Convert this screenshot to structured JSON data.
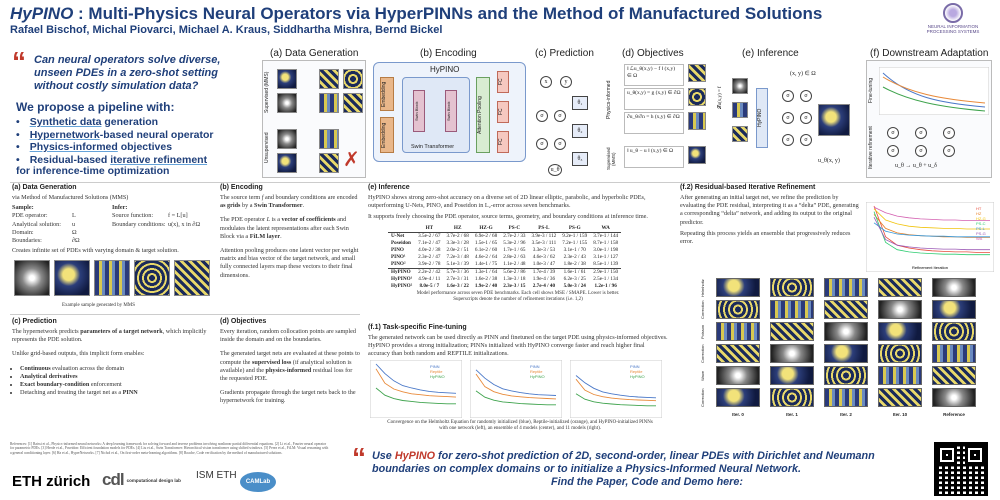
{
  "header": {
    "title_main": "HyPINO",
    "title_rest": " : Multi-Physics Neural Operators via HyperPINNs and the Method of Manufactured Solutions",
    "authors": "Rafael Bischof, Michal Piovarci, Michael A. Kraus, Siddhartha Mishra, Bernd Bickel",
    "conf_logo_text": "NEURAL INFORMATION PROCESSING SYSTEMS"
  },
  "claims": {
    "question": "Can neural operators solve diverse, unseen PDEs in a zero-shot setting without costly simulation data?",
    "propose": "We propose a pipeline with:",
    "items": [
      {
        "hl": "Synthetic data",
        "rest": " generation"
      },
      {
        "hl": "Hypernetwork",
        "rest": "-based neural operator"
      },
      {
        "hl": "Physics-informed",
        "rest": " objectives"
      },
      {
        "pre": "Residual-based ",
        "hl": "iterative refinement",
        "rest": ""
      }
    ],
    "last": "for inference-time optimization"
  },
  "panels": {
    "a": "(a) Data Generation",
    "b": "(b) Encoding",
    "c": "(c) Prediction",
    "d": "(d) Objectives",
    "e": "(e) Inference",
    "f": "(f) Downstream Adaptation"
  },
  "top_labels": {
    "supervised": "Supervised (MMS)",
    "unsupervised": "Unsupervised",
    "hypino": "HyPINO",
    "embedding": "Embedding",
    "swin_block": "Swin Block",
    "swin_transformer": "Swin Transformer",
    "attention_pooling": "Attention Pooling",
    "fc": "FC",
    "physics_informed": "Physics-informed",
    "supervised_short": "Supervised (MMS)",
    "fine_tuning": "Fine-tuning",
    "iterative_refinement": "Iterative refinement",
    "theta1": "θ₁",
    "theta2": "θ₂",
    "theta3": "θ₃",
    "u_theta": "u_θ",
    "sigma": "σ",
    "x": "x",
    "y": "y",
    "inference_domain": "(x, y) ∈ Ω",
    "inference_output": "u_θ(x, y)",
    "operator": "ℒ",
    "hypino_vert": "HyPINO",
    "lu_eq": "𝓛u(x,y) = f",
    "obj1": "‖ ℒu_θ(x,y) − f ‖ (x,y) ∈ Ω",
    "obj2": "u_θ(x,y) = g  (x,y) ∈ ∂Ω",
    "obj3": "∂u_θ/∂n = h  (x,y) ∈ ∂Ω",
    "obj4": "‖ u_θ − u ‖ (x,y) ∈ Ω",
    "ft_eq": "u_θ → u_θ + u_δ",
    "cross": "✗"
  },
  "sections": {
    "a": {
      "head": "(a) Data Generation",
      "intro": "via Method of Manufactured Solutions (MMS)",
      "sample": "Sample:",
      "infer": "Infer:",
      "rows": [
        {
          "k": "PDE operator:",
          "v": "L",
          "k2": "Source function:",
          "v2": "f = L[u]"
        },
        {
          "k": "Analytical solution:",
          "v": "u",
          "k2": "Boundary conditions:",
          "v2": "u(x), x in ∂Ω"
        },
        {
          "k": "Domain:",
          "v": "Ω",
          "k2": "",
          "v2": ""
        },
        {
          "k": "Boundaries:",
          "v": "∂Ω",
          "k2": "",
          "v2": ""
        }
      ],
      "note": "Creates infinite set of PDEs with varying domain & target solution.",
      "caption": "Example sample generated by MMS"
    },
    "b": {
      "head": "(b) Encoding",
      "p1_a": "The source term ",
      "p1_f": "f",
      "p1_b": " and boundary conditions are encoded ",
      "p1_grids": "as grids",
      "p1_c": " by a ",
      "p1_swin": "Swin Transformer",
      "p1_d": ".",
      "p2_a": "The PDE operator ",
      "p2_l": "L",
      "p2_b": " is a ",
      "p2_vec": "vector of coefficients",
      "p2_c": " and modulates the latent representations after each Swin Block via a ",
      "p2_film": "FiLM layer",
      "p2_d": ".",
      "p3": "Attention pooling produces one latent vector per weight matrix and bias vector of the target network, and small fully connected layers map these vectors to their final dimensions."
    },
    "e": {
      "head": "(e) Inference",
      "p1": "HyPINO shows strong zero-shot accuracy on a diverse set of 2D linear elliptic, parabolic, and hyperbolic PDEs, outperforming U-Nets, PINO, and Poseidon in L₂-error across seven benchmarks.",
      "p2": "It supports freely choosing the PDE operator, source terms, geometry, and boundary conditions at inference time.",
      "table_caption": "Model performance across seven PDE benchmarks. Each cell shows MSE / SMAPE. Lower is better.",
      "table_caption2": "Superscripts denote the number of refinement iterations (i.e. 1,2)"
    },
    "f2": {
      "head": "(f.2) Residual-based Iterative Refinement",
      "p1": "After generating an initial target net, we refine the prediction by evaluating the PDE residual, interpreting it as a “delta” PDE, generating a corresponding “delta” network, and adding its output to the original predictor.",
      "p2": "Repeating this process yields an ensemble that progressively reduces error.",
      "x_label": "Refinement Iteration",
      "row_labels": [
        "Helmholtz",
        "Correction",
        "Poisson",
        "Correction",
        "Wave",
        "Correction"
      ],
      "col_labels": [
        "Iter. 0",
        "Iter. 1",
        "Iter. 2",
        "Iter. 10",
        "Reference"
      ],
      "legend": [
        "HT",
        "HZ",
        "HZ-G",
        "PS-C",
        "PS-L",
        "PS-G",
        "WA"
      ]
    },
    "c": {
      "head": "(c) Prediction",
      "p1_a": "The hypernetwork predicts ",
      "p1_b": "parameters of a target network",
      "p1_c": ", which implicitly represents the PDE solution.",
      "p2": "Unlike grid-based outputs, this implicit form enables:",
      "bullets": [
        {
          "b": "Continuous",
          "r": " evaluation across the domain"
        },
        {
          "b": "Analytical derivatives",
          "r": ""
        },
        {
          "b": "Exact boundary-condition",
          "r": " enforcement"
        },
        {
          "b": "",
          "r": "Detaching and treating the target net as a "
        },
        {
          "b": "PINN",
          "r": ""
        }
      ]
    },
    "d": {
      "head": "(d) Objectives",
      "p1": "Every iteration, random collocation points are sampled inside the domain and on the boundaries.",
      "p2_a": "The generated target nets are evaluated at these points to compute the ",
      "p2_b": "supervised loss",
      "p2_c": " (if analytical solution is available) and the ",
      "p2_d": "physics-informed",
      "p2_e": " residual loss for the requested PDE.",
      "p3": "Gradients propagate through the target nets back to the hypernetwork for training."
    },
    "f1": {
      "head": "(f.1) Task-specific Fine-tuning",
      "p1": "The generated network can be used directly as PINN and finetuned on the target PDE using physics-informed objectives. HyPINO provides a strong initialization; PINNs initialized with HyPINO converge faster and reach higher final accuracy than both random and REPTILE initializations.",
      "legend": [
        "PINN",
        "Reptile",
        "HyPINO"
      ],
      "caption1": "Convergence on the Helmholtz Equation for randomly initialized (blue), Reptile-initialized (orange), and HyPINO-initialized PINNs",
      "caption2": "with one network (left), an ensemble of 4 models (center), and 11 models (right)."
    }
  },
  "table": {
    "cols": [
      "",
      "HT",
      "HZ",
      "HZ-G",
      "PS-C",
      "PS-L",
      "PS-G",
      "WA"
    ],
    "rows": [
      {
        "m": "U-Net",
        "v": [
          "3.5e-2 / 67",
          "3.7e-2 / 68",
          "6.9e-2 / 68",
          "2.7e-2 / 33",
          "3.9e-3 / 112",
          "9.2e-1 / 159",
          "3.7e-1 / 144"
        ]
      },
      {
        "m": "Poseidon",
        "v": [
          "7.1e-2 / 47",
          "3.3e-3 / 28",
          "1.5e-1 / 65",
          "5.3e-2 / 96",
          "3.5e-3 / 111",
          "7.2e-1 / 155",
          "8.7e-1 / 158"
        ]
      },
      {
        "m": "PINO",
        "v": [
          "4.0e-2 / 38",
          "2.0e-2 / 51",
          "6.1e-2 / 60",
          "1.7e-1 / 65",
          "3.3e-3 / 53",
          "3.1e-1 / 70",
          "3.0e-1 / 198"
        ]
      },
      {
        "m": "PINO¹",
        "v": [
          "2.3e-2 / 47",
          "7.2e-3 / 48",
          "4.6e-2 / 64",
          "2.8e-2 / 63",
          "4.6e-3 / 62",
          "2.3e-2 / 43",
          "3.1e-1 / 127"
        ]
      },
      {
        "m": "PINO²",
        "v": [
          "3.9e-2 / 78",
          "5.1e-3 / 39",
          "1.4e-1 / 75",
          "1.1e-2 / 48",
          "1.0e-3 / 47",
          "1.8e-2 / 38",
          "8.5e-1 / 139"
        ]
      },
      {
        "m": "HyPINO",
        "v": [
          "2.2e-2 / 42",
          "5.7e-3 / 36",
          "1.3e-1 / 64",
          "5.6e-2 / 86",
          "1.7e-4 / 39",
          "1.6e-1 / 61",
          "2.9e-1 / 150"
        ]
      },
      {
        "m": "HyPINO¹",
        "v": [
          "4.9e-4 / 11",
          "2.7e-3 / 31",
          "1.6e-2 / 38",
          "1.3e-3 / 18",
          "1.9e-4 / 36",
          "6.2e-3 / 25",
          "2.5e-1 / 134"
        ]
      },
      {
        "m": "HyPINO²",
        "v": [
          "8.0e-5 / 7",
          "1.6e-3 / 22",
          "1.9e-2 / 40",
          "2.3e-3 / 15",
          "2.7e-4 / 40",
          "5.0e-3 / 24",
          "1.2e-1 / 96"
        ]
      }
    ]
  },
  "chart_data": [
    {
      "type": "line",
      "title": "",
      "xlabel": "Refinement Iteration",
      "ylabel": "",
      "x": [
        0,
        1,
        2,
        3,
        4,
        5,
        6,
        7,
        8,
        9,
        10
      ],
      "series": [
        {
          "name": "HT",
          "values": [
            1.0,
            0.45,
            0.3,
            0.25,
            0.22,
            0.2,
            0.19,
            0.18,
            0.18,
            0.17,
            0.17
          ]
        },
        {
          "name": "HZ",
          "values": [
            0.85,
            0.6,
            0.52,
            0.49,
            0.47,
            0.46,
            0.45,
            0.45,
            0.44,
            0.44,
            0.44
          ]
        },
        {
          "name": "HZ-G",
          "values": [
            0.95,
            0.75,
            0.68,
            0.64,
            0.62,
            0.61,
            0.6,
            0.6,
            0.59,
            0.59,
            0.59
          ]
        },
        {
          "name": "PS-C",
          "values": [
            0.9,
            0.35,
            0.22,
            0.18,
            0.16,
            0.15,
            0.14,
            0.14,
            0.13,
            0.13,
            0.13
          ]
        },
        {
          "name": "PS-L",
          "values": [
            0.7,
            0.55,
            0.5,
            0.48,
            0.47,
            0.46,
            0.46,
            0.45,
            0.45,
            0.45,
            0.45
          ]
        },
        {
          "name": "PS-G",
          "values": [
            0.8,
            0.4,
            0.3,
            0.27,
            0.25,
            0.24,
            0.23,
            0.23,
            0.22,
            0.22,
            0.22
          ]
        },
        {
          "name": "WA",
          "values": [
            0.98,
            0.88,
            0.82,
            0.79,
            0.77,
            0.76,
            0.75,
            0.75,
            0.74,
            0.74,
            0.74
          ]
        }
      ],
      "colors": [
        "#e74c3c",
        "#e67e22",
        "#f1c40f",
        "#2ecc71",
        "#3498db",
        "#9b59b6",
        "#d35fb0"
      ]
    },
    {
      "type": "line",
      "title": "",
      "legend": [
        "PINN",
        "Reptile",
        "HyPINO"
      ],
      "x": [
        0,
        1,
        2,
        3,
        4,
        5,
        6,
        7,
        8,
        9
      ],
      "series": [
        {
          "name": "PINN",
          "values": [
            1.0,
            0.8,
            0.65,
            0.55,
            0.5,
            0.46,
            0.43,
            0.41,
            0.4,
            0.39
          ]
        },
        {
          "name": "Reptile",
          "values": [
            0.9,
            0.6,
            0.48,
            0.42,
            0.38,
            0.36,
            0.34,
            0.33,
            0.32,
            0.31
          ]
        },
        {
          "name": "HyPINO",
          "values": [
            0.5,
            0.35,
            0.28,
            0.24,
            0.22,
            0.2,
            0.19,
            0.18,
            0.17,
            0.17
          ]
        }
      ],
      "colors": [
        "#4a78c8",
        "#e88a3a",
        "#3fa34d"
      ]
    }
  ],
  "bottom": {
    "cta_a": "Use ",
    "cta_hyp": "HyPINO",
    "cta_b": " for zero-shot prediction of 2D, second-order, linear PDEs with Dirichlet and Neumann boundaries on complex domains or to initialize a Physics-Informed Neural Network.",
    "cta_c": "Find the Paper, Code and Demo here:",
    "eth": "ETH zürich",
    "cdl": "cdl",
    "cdl_sub": "computational design lab",
    "isma": "ISM ETH",
    "cam": "CAMLab",
    "refs": "References: [1] Raissi et al., Physics-informed neural networks: A deep learning framework for solving forward and inverse problems involving nonlinear partial differential equations. [2] Li et al., Fourier neural operator for parametric PDEs. [3] Herde et al., Poseidon: Efficient foundation models for PDEs. [4] Liu et al., Swin Transformer: Hierarchical vision transformer using shifted windows. [5] Perez et al., FiLM: Visual reasoning with a general conditioning layer. [6] Ha et al., HyperNetworks. [7] Nichol et al., On first-order meta-learning algorithms. [8] Roache, Code verification by the method of manufactured solutions."
  },
  "colors": {
    "navy": "#1f3f7a",
    "red": "#c0392b",
    "hl_underline": "#66a3d9"
  }
}
